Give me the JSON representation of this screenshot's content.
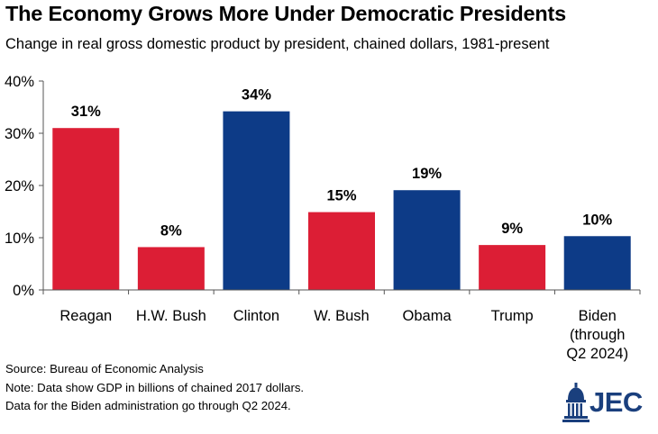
{
  "title": "The Economy Grows More Under Democratic Presidents",
  "subtitle": "Change in real gross domestic product by president, chained dollars, 1981-present",
  "notes": {
    "source": "Source: Bureau of Economic Analysis",
    "note1": "Note: Data show GDP in billions of chained 2017 dollars.",
    "note2": "Data for the Biden administration go through Q2 2024."
  },
  "logo": {
    "text": "JEC",
    "icon": "capitol-dome-icon"
  },
  "colors": {
    "republican": "#dc1e35",
    "democrat": "#0d3b87",
    "logo": "#1a3f7d"
  },
  "chart_data": {
    "type": "bar",
    "categories": [
      [
        "Reagan"
      ],
      [
        "H.W. Bush"
      ],
      [
        "Clinton"
      ],
      [
        "W. Bush"
      ],
      [
        "Obama"
      ],
      [
        "Trump"
      ],
      [
        "Biden",
        "(through",
        "Q2 2024)"
      ]
    ],
    "values": [
      31,
      8,
      34,
      15,
      19,
      9,
      10
    ],
    "plotted_values": [
      31,
      8.2,
      34.2,
      14.9,
      19.1,
      8.6,
      10.3
    ],
    "data_labels": [
      "31%",
      "8%",
      "34%",
      "15%",
      "19%",
      "9%",
      "10%"
    ],
    "party": [
      "republican",
      "republican",
      "democrat",
      "republican",
      "democrat",
      "republican",
      "democrat"
    ],
    "yticks": [
      "0%",
      "10%",
      "20%",
      "30%",
      "40%"
    ],
    "ylim": [
      0,
      40
    ],
    "grid": false
  }
}
